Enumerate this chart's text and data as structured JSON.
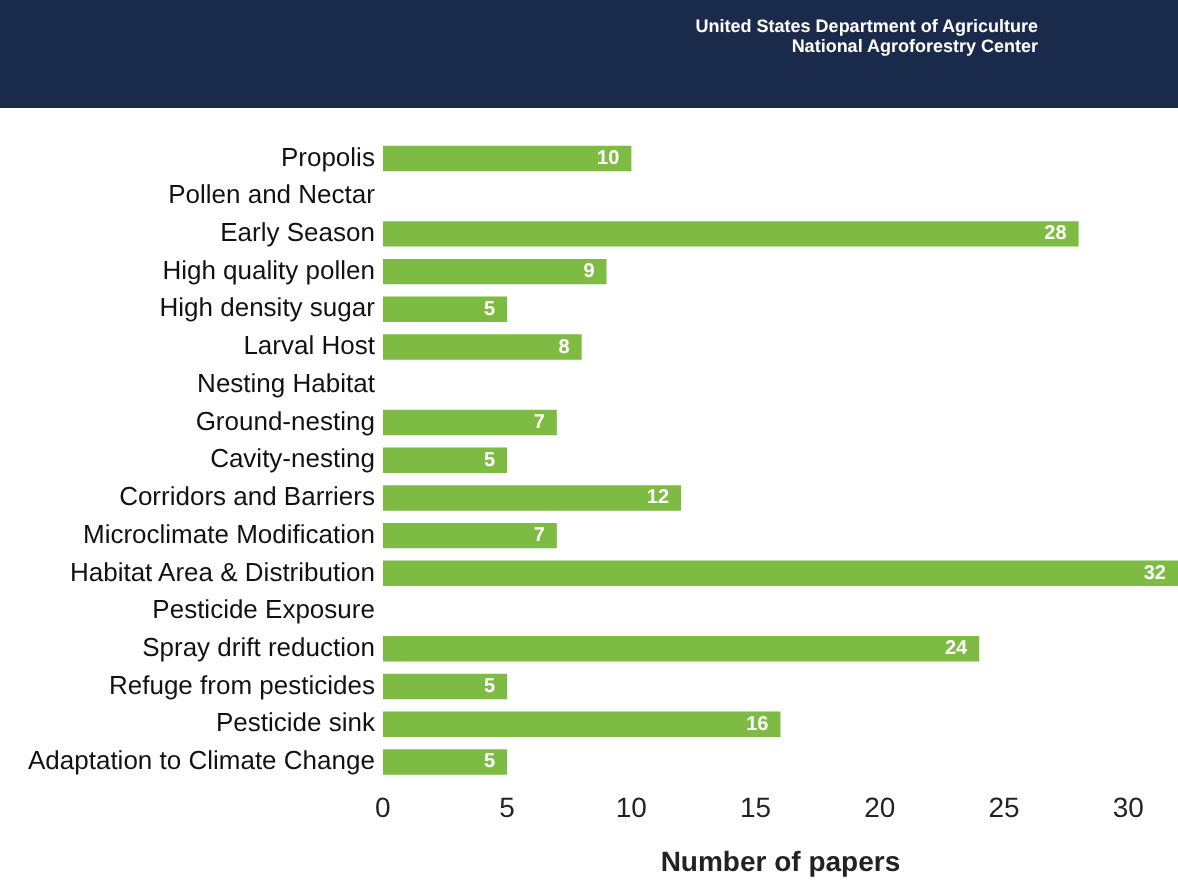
{
  "chart_data": {
    "type": "bar",
    "orientation": "horizontal",
    "xlabel": "Number of papers",
    "annotations": [
      "United States Department of Agriculture\nNational Agroforestry Center"
    ],
    "categories": [
      "Propolis",
      "Pollen and Nectar",
      "Early Season",
      "High quality pollen",
      "High density sugar",
      "Larval Host",
      "Nesting Habitat",
      "Ground-nesting",
      "Cavity-nesting",
      "Corridors and Barriers",
      "Microclimate Modification",
      "Habitat Area & Distribution",
      "Pesticide Exposure",
      "Spray drift reduction",
      "Refuge from pesticides",
      "Pesticide sink",
      "Adaptation to Climate Change"
    ],
    "values": [
      10,
      null,
      28,
      9,
      5,
      8,
      null,
      7,
      5,
      12,
      7,
      32,
      null,
      24,
      5,
      16,
      5
    ],
    "color": "#7dbb42",
    "xlim": [
      0,
      32
    ],
    "xticks": [
      0,
      5,
      10,
      15,
      20,
      25,
      30
    ],
    "grid": false,
    "legend": false,
    "data_labels": true
  }
}
